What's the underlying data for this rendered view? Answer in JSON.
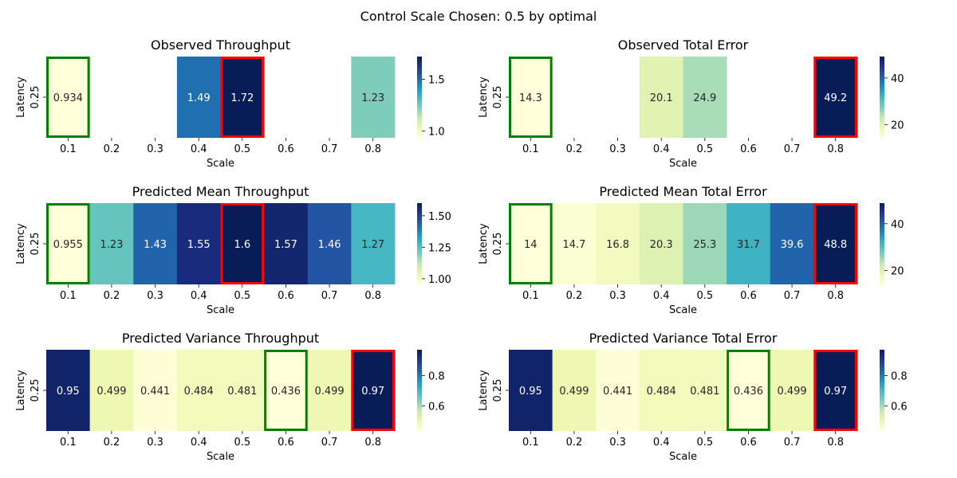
{
  "figure": {
    "suptitle": "Control Scale Chosen: 0.5 by optimal"
  },
  "chart_data": [
    {
      "type": "heatmap",
      "title": "Observed Throughput",
      "xlabel": "Scale",
      "ylabel": "Latency",
      "x_ticks": [
        "0.1",
        "0.2",
        "0.3",
        "0.4",
        "0.5",
        "0.6",
        "0.7",
        "0.8"
      ],
      "y_ticks": [
        "0.25"
      ],
      "values": [
        0.934,
        null,
        null,
        1.49,
        1.72,
        null,
        null,
        1.23
      ],
      "cell_labels": [
        "0.934",
        "",
        "",
        "1.49",
        "1.72",
        "",
        "",
        "1.23"
      ],
      "colormap": "YlGnBu",
      "vmin": 0.934,
      "vmax": 1.72,
      "colorbar_ticks": [
        1.0,
        1.5
      ],
      "colorbar_tick_labels": [
        "1.0",
        "1.5"
      ],
      "highlight_best_index": 0,
      "best_color": "#008000",
      "highlight_worst_index": 4,
      "worst_color": "#ff0000"
    },
    {
      "type": "heatmap",
      "title": "Observed Total Error",
      "xlabel": "Scale",
      "ylabel": "Latency",
      "x_ticks": [
        "0.1",
        "0.2",
        "0.3",
        "0.4",
        "0.5",
        "0.6",
        "0.7",
        "0.8"
      ],
      "y_ticks": [
        "0.25"
      ],
      "values": [
        14.3,
        null,
        null,
        20.1,
        24.9,
        null,
        null,
        49.2
      ],
      "cell_labels": [
        "14.3",
        "",
        "",
        "20.1",
        "24.9",
        "",
        "",
        "49.2"
      ],
      "colormap": "YlGnBu",
      "vmin": 14.3,
      "vmax": 49.2,
      "colorbar_ticks": [
        20,
        40
      ],
      "colorbar_tick_labels": [
        "20",
        "40"
      ],
      "highlight_best_index": 0,
      "best_color": "#008000",
      "highlight_worst_index": 7,
      "worst_color": "#ff0000"
    },
    {
      "type": "heatmap",
      "title": "Predicted Mean Throughput",
      "xlabel": "Scale",
      "ylabel": "Latency",
      "x_ticks": [
        "0.1",
        "0.2",
        "0.3",
        "0.4",
        "0.5",
        "0.6",
        "0.7",
        "0.8"
      ],
      "y_ticks": [
        "0.25"
      ],
      "values": [
        0.955,
        1.23,
        1.43,
        1.55,
        1.6,
        1.57,
        1.46,
        1.27
      ],
      "cell_labels": [
        "0.955",
        "1.23",
        "1.43",
        "1.55",
        "1.6",
        "1.57",
        "1.46",
        "1.27"
      ],
      "colormap": "YlGnBu",
      "vmin": 0.955,
      "vmax": 1.6,
      "colorbar_ticks": [
        1.0,
        1.25,
        1.5
      ],
      "colorbar_tick_labels": [
        "1.00",
        "1.25",
        "1.50"
      ],
      "highlight_best_index": 0,
      "best_color": "#008000",
      "highlight_worst_index": 4,
      "worst_color": "#ff0000"
    },
    {
      "type": "heatmap",
      "title": "Predicted Mean Total Error",
      "xlabel": "Scale",
      "ylabel": "Latency",
      "x_ticks": [
        "0.1",
        "0.2",
        "0.3",
        "0.4",
        "0.5",
        "0.6",
        "0.7",
        "0.8"
      ],
      "y_ticks": [
        "0.25"
      ],
      "values": [
        14,
        14.7,
        16.8,
        20.3,
        25.3,
        31.7,
        39.6,
        48.8
      ],
      "cell_labels": [
        "14",
        "14.7",
        "16.8",
        "20.3",
        "25.3",
        "31.7",
        "39.6",
        "48.8"
      ],
      "colormap": "YlGnBu",
      "vmin": 14,
      "vmax": 48.8,
      "colorbar_ticks": [
        20,
        40
      ],
      "colorbar_tick_labels": [
        "20",
        "40"
      ],
      "highlight_best_index": 0,
      "best_color": "#008000",
      "highlight_worst_index": 7,
      "worst_color": "#ff0000"
    },
    {
      "type": "heatmap",
      "title": "Predicted Variance Throughput",
      "xlabel": "Scale",
      "ylabel": "Latency",
      "x_ticks": [
        "0.1",
        "0.2",
        "0.3",
        "0.4",
        "0.5",
        "0.6",
        "0.7",
        "0.8"
      ],
      "y_ticks": [
        "0.25"
      ],
      "values": [
        0.95,
        0.499,
        0.441,
        0.484,
        0.481,
        0.436,
        0.499,
        0.97
      ],
      "cell_labels": [
        "0.95",
        "0.499",
        "0.441",
        "0.484",
        "0.481",
        "0.436",
        "0.499",
        "0.97"
      ],
      "colormap": "YlGnBu",
      "vmin": 0.436,
      "vmax": 0.97,
      "colorbar_ticks": [
        0.6,
        0.8
      ],
      "colorbar_tick_labels": [
        "0.6",
        "0.8"
      ],
      "highlight_best_index": 5,
      "best_color": "#008000",
      "highlight_worst_index": 7,
      "worst_color": "#ff0000"
    },
    {
      "type": "heatmap",
      "title": "Predicted Variance Total Error",
      "xlabel": "Scale",
      "ylabel": "Latency",
      "x_ticks": [
        "0.1",
        "0.2",
        "0.3",
        "0.4",
        "0.5",
        "0.6",
        "0.7",
        "0.8"
      ],
      "y_ticks": [
        "0.25"
      ],
      "values": [
        0.95,
        0.499,
        0.441,
        0.484,
        0.481,
        0.436,
        0.499,
        0.97
      ],
      "cell_labels": [
        "0.95",
        "0.499",
        "0.441",
        "0.484",
        "0.481",
        "0.436",
        "0.499",
        "0.97"
      ],
      "colormap": "YlGnBu",
      "vmin": 0.436,
      "vmax": 0.97,
      "colorbar_ticks": [
        0.6,
        0.8
      ],
      "colorbar_tick_labels": [
        "0.6",
        "0.8"
      ],
      "highlight_best_index": 5,
      "best_color": "#008000",
      "highlight_worst_index": 7,
      "worst_color": "#ff0000"
    }
  ]
}
